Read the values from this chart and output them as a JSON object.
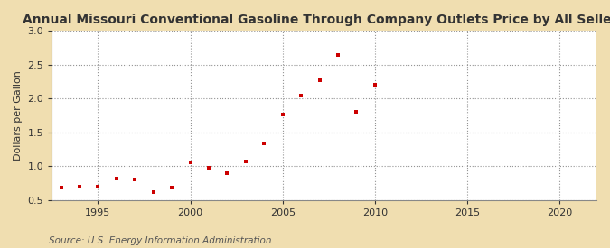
{
  "title": "Annual Missouri Conventional Gasoline Through Company Outlets Price by All Sellers",
  "ylabel": "Dollars per Gallon",
  "source": "Source: U.S. Energy Information Administration",
  "fig_background_color": "#f0deb0",
  "plot_background_color": "#ffffff",
  "marker_color": "#cc0000",
  "xlim": [
    1992.5,
    2022
  ],
  "ylim": [
    0.5,
    3.0
  ],
  "xticks": [
    1995,
    2000,
    2005,
    2010,
    2015,
    2020
  ],
  "yticks": [
    0.5,
    1.0,
    1.5,
    2.0,
    2.5,
    3.0
  ],
  "years": [
    1993,
    1994,
    1995,
    1996,
    1997,
    1998,
    1999,
    2000,
    2001,
    2002,
    2003,
    2004,
    2005,
    2006,
    2007,
    2008,
    2009,
    2010
  ],
  "prices": [
    0.68,
    0.7,
    0.7,
    0.82,
    0.8,
    0.62,
    0.68,
    1.06,
    0.98,
    0.9,
    1.07,
    1.34,
    1.77,
    2.04,
    2.27,
    2.65,
    1.8,
    2.2
  ],
  "title_fontsize": 10,
  "label_fontsize": 8,
  "tick_fontsize": 8,
  "source_fontsize": 7.5,
  "grid_color": "#888888",
  "spine_color": "#888888"
}
